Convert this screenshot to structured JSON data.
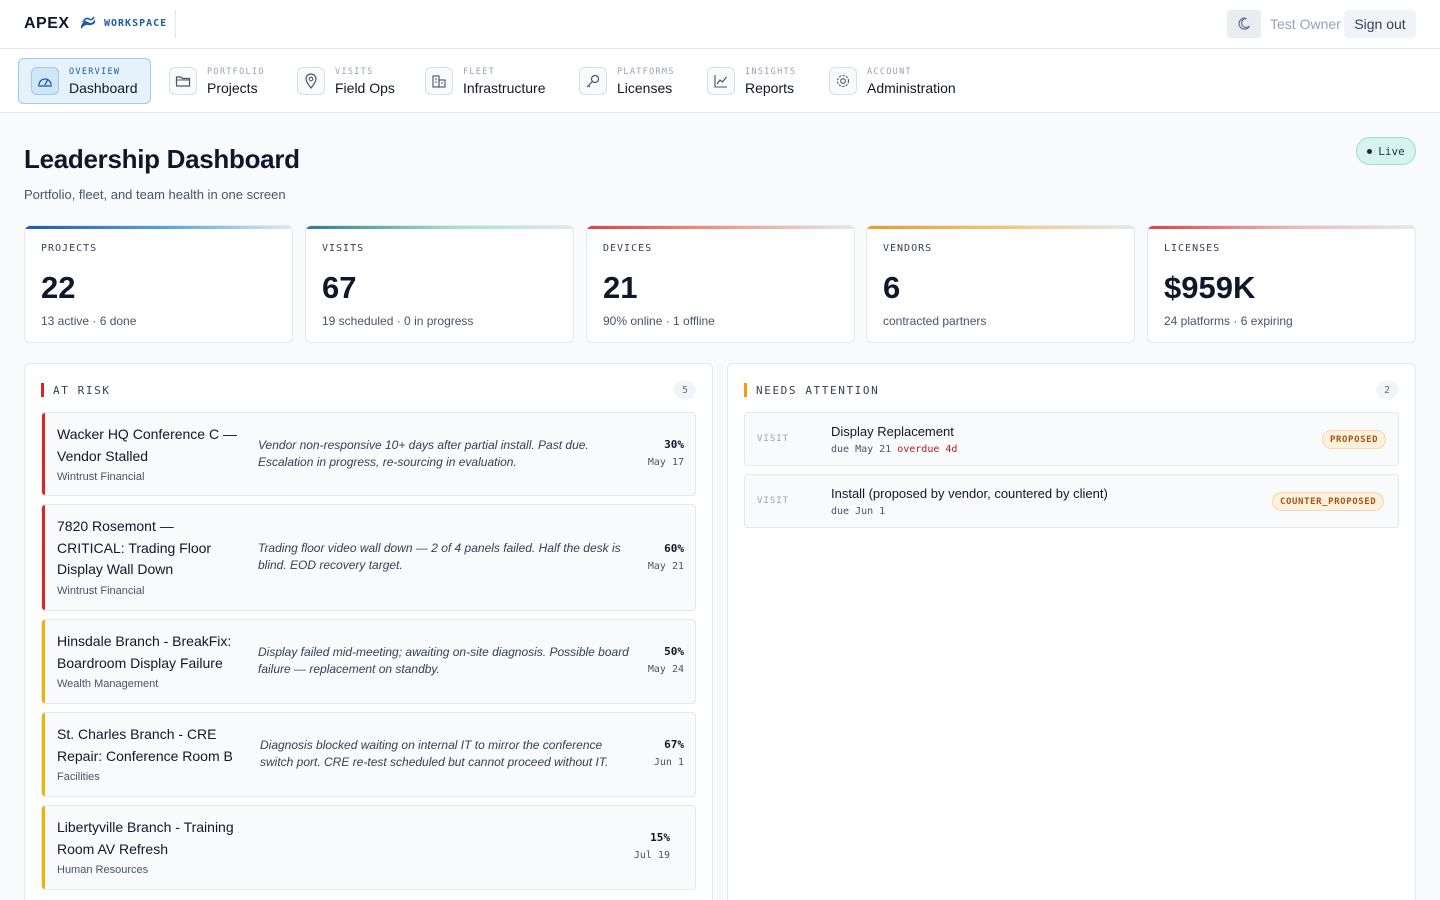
{
  "brand": {
    "name": "APEX",
    "sub": "WORKSPACE",
    "mark_icon": "wave-logo-icon"
  },
  "topbar": {
    "theme_icon": "moon-icon",
    "user": "Test Owner",
    "signout": "Sign out"
  },
  "nav": [
    {
      "kicker": "OVERVIEW",
      "label": "Dashboard",
      "icon": "gauge-icon",
      "active": true
    },
    {
      "kicker": "PORTFOLIO",
      "label": "Projects",
      "icon": "folder-icon"
    },
    {
      "kicker": "VISITS",
      "label": "Field Ops",
      "icon": "map-pin-icon"
    },
    {
      "kicker": "FLEET",
      "label": "Infrastructure",
      "icon": "buildings-icon"
    },
    {
      "kicker": "PLATFORMS",
      "label": "Licenses",
      "icon": "key-icon"
    },
    {
      "kicker": "INSIGHTS",
      "label": "Reports",
      "icon": "trend-chart-icon"
    },
    {
      "kicker": "ACCOUNT",
      "label": "Administration",
      "icon": "gear-icon"
    }
  ],
  "header": {
    "title": "Leadership Dashboard",
    "subtitle": "Portfolio, fleet, and team health in one screen",
    "live": "Live"
  },
  "stats": [
    {
      "label": "PROJECTS",
      "value": "22",
      "sub": "13 active · 6 done",
      "accent": [
        "#1e5aa8",
        "#5aa7e0"
      ]
    },
    {
      "label": "VISITS",
      "value": "67",
      "sub": "19 scheduled · 0 in progress",
      "accent": [
        "#2f7a8c",
        "#9fe3c8"
      ]
    },
    {
      "label": "DEVICES",
      "value": "21",
      "sub": "90% online · 1 offline",
      "accent": [
        "#d64545",
        "#f0a08a"
      ]
    },
    {
      "label": "VENDORS",
      "value": "6",
      "sub": "contracted partners",
      "accent": [
        "#e89a2c",
        "#f5c879"
      ]
    },
    {
      "label": "LICENSES",
      "value": "$959K",
      "sub": "24 platforms · 6 expiring",
      "accent": [
        "#d64545",
        "#f0b8b8"
      ]
    }
  ],
  "at_risk": {
    "title": "AT RISK",
    "count": "5",
    "accent": "#dc2626",
    "items": [
      {
        "title": "Wacker HQ Conference C — Vendor Stalled",
        "org": "Wintrust Financial",
        "note": "Vendor non-responsive 10+ days after partial install. Past due. Escalation in progress, re-sourcing in evaluation.",
        "pct": "30%",
        "date": "May 17",
        "accent": "#dc2626"
      },
      {
        "title": "7820 Rosemont — CRITICAL: Trading Floor Display Wall Down",
        "org": "Wintrust Financial",
        "note": "Trading floor video wall down — 2 of 4 panels failed. Half the desk is blind. EOD recovery target.",
        "pct": "60%",
        "date": "May 21",
        "accent": "#dc2626"
      },
      {
        "title": "Hinsdale Branch - BreakFix: Boardroom Display Failure",
        "org": "Wealth Management",
        "note": "Display failed mid-meeting; awaiting on-site diagnosis. Possible board failure — replacement on standby.",
        "pct": "50%",
        "date": "May 24",
        "accent": "#eab308"
      },
      {
        "title": "St. Charles Branch - CRE Repair: Conference Room B",
        "org": "Facilities",
        "note": "Diagnosis blocked waiting on internal IT to mirror the conference switch port. CRE re-test scheduled but cannot proceed without IT.",
        "pct": "67%",
        "date": "Jun 1",
        "accent": "#eab308"
      },
      {
        "title": "Libertyville Branch - Training Room AV Refresh",
        "org": "Human Resources",
        "note": "",
        "pct": "15%",
        "date": "Jul 19",
        "accent": "#eab308"
      }
    ]
  },
  "needs_attention": {
    "title": "NEEDS ATTENTION",
    "count": "2",
    "accent": "#f59e0b",
    "items": [
      {
        "kind": "VISIT",
        "title": "Display Replacement",
        "due": "due May 21",
        "overdue": "overdue 4d",
        "status": "PROPOSED"
      },
      {
        "kind": "VISIT",
        "title": "Install (proposed by vendor, countered by client)",
        "due": "due Jun 1",
        "overdue": "",
        "status": "COUNTER_PROPOSED"
      }
    ]
  }
}
